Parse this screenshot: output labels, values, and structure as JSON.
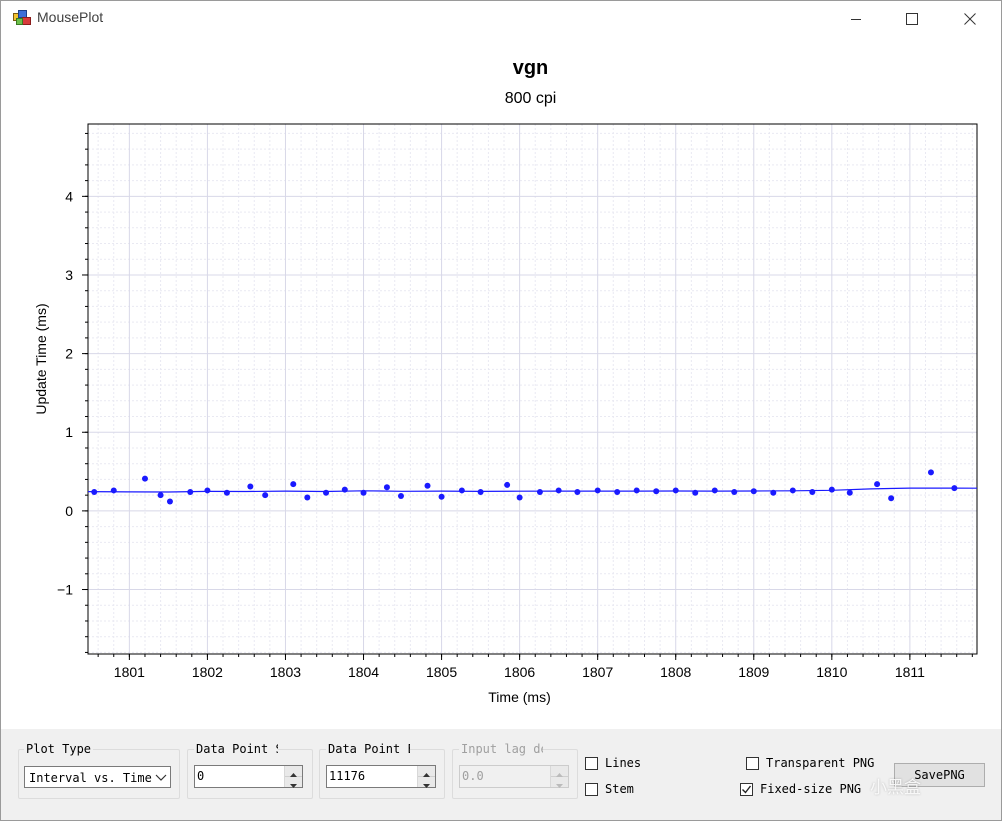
{
  "window": {
    "title": "MousePlot",
    "minimize_icon": "minimize-icon",
    "maximize_icon": "maximize-icon",
    "close_icon": "close-icon"
  },
  "chart_data": {
    "type": "scatter",
    "title": "vgn",
    "subtitle": "800 cpi",
    "xlabel": "Time (ms)",
    "ylabel": "Update Time (ms)",
    "xlim": [
      1800.47,
      1811.86
    ],
    "ylim": [
      -1.82,
      4.92
    ],
    "xticks": [
      1801,
      1802,
      1803,
      1804,
      1805,
      1806,
      1807,
      1808,
      1809,
      1810,
      1811
    ],
    "yticks": [
      -1,
      0,
      1,
      2,
      3,
      4
    ],
    "grid": true,
    "colors": {
      "points": "#1a1aff",
      "line": "#1a1aff",
      "grid": "#d8d8e8"
    },
    "series": [
      {
        "values": [
          {
            "x": 1800.55,
            "y": 0.24
          },
          {
            "x": 1800.8,
            "y": 0.26
          },
          {
            "x": 1801.2,
            "y": 0.41
          },
          {
            "x": 1801.4,
            "y": 0.2
          },
          {
            "x": 1801.52,
            "y": 0.12
          },
          {
            "x": 1801.78,
            "y": 0.24
          },
          {
            "x": 1802.0,
            "y": 0.26
          },
          {
            "x": 1802.25,
            "y": 0.23
          },
          {
            "x": 1802.55,
            "y": 0.31
          },
          {
            "x": 1802.74,
            "y": 0.2
          },
          {
            "x": 1803.1,
            "y": 0.34
          },
          {
            "x": 1803.28,
            "y": 0.17
          },
          {
            "x": 1803.52,
            "y": 0.23
          },
          {
            "x": 1803.76,
            "y": 0.27
          },
          {
            "x": 1804.0,
            "y": 0.23
          },
          {
            "x": 1804.3,
            "y": 0.3
          },
          {
            "x": 1804.48,
            "y": 0.19
          },
          {
            "x": 1804.82,
            "y": 0.32
          },
          {
            "x": 1805.0,
            "y": 0.18
          },
          {
            "x": 1805.26,
            "y": 0.26
          },
          {
            "x": 1805.5,
            "y": 0.24
          },
          {
            "x": 1805.84,
            "y": 0.33
          },
          {
            "x": 1806.0,
            "y": 0.17
          },
          {
            "x": 1806.26,
            "y": 0.24
          },
          {
            "x": 1806.5,
            "y": 0.26
          },
          {
            "x": 1806.74,
            "y": 0.24
          },
          {
            "x": 1807.0,
            "y": 0.26
          },
          {
            "x": 1807.25,
            "y": 0.24
          },
          {
            "x": 1807.5,
            "y": 0.26
          },
          {
            "x": 1807.75,
            "y": 0.25
          },
          {
            "x": 1808.0,
            "y": 0.26
          },
          {
            "x": 1808.25,
            "y": 0.23
          },
          {
            "x": 1808.5,
            "y": 0.26
          },
          {
            "x": 1808.75,
            "y": 0.24
          },
          {
            "x": 1809.0,
            "y": 0.25
          },
          {
            "x": 1809.25,
            "y": 0.23
          },
          {
            "x": 1809.5,
            "y": 0.26
          },
          {
            "x": 1809.75,
            "y": 0.24
          },
          {
            "x": 1810.0,
            "y": 0.27
          },
          {
            "x": 1810.23,
            "y": 0.23
          },
          {
            "x": 1810.58,
            "y": 0.34
          },
          {
            "x": 1810.76,
            "y": 0.16
          },
          {
            "x": 1811.27,
            "y": 0.49
          },
          {
            "x": 1811.57,
            "y": 0.29
          }
        ]
      }
    ],
    "trend_line": [
      {
        "x": 1800.47,
        "y": 0.245
      },
      {
        "x": 1801.0,
        "y": 0.242
      },
      {
        "x": 1801.5,
        "y": 0.24
      },
      {
        "x": 1802.0,
        "y": 0.248
      },
      {
        "x": 1802.5,
        "y": 0.246
      },
      {
        "x": 1803.0,
        "y": 0.252
      },
      {
        "x": 1803.5,
        "y": 0.247
      },
      {
        "x": 1804.0,
        "y": 0.255
      },
      {
        "x": 1804.5,
        "y": 0.249
      },
      {
        "x": 1805.0,
        "y": 0.252
      },
      {
        "x": 1805.5,
        "y": 0.248
      },
      {
        "x": 1806.0,
        "y": 0.25
      },
      {
        "x": 1806.5,
        "y": 0.252
      },
      {
        "x": 1807.0,
        "y": 0.251
      },
      {
        "x": 1807.5,
        "y": 0.252
      },
      {
        "x": 1808.0,
        "y": 0.253
      },
      {
        "x": 1808.5,
        "y": 0.252
      },
      {
        "x": 1809.0,
        "y": 0.253
      },
      {
        "x": 1809.5,
        "y": 0.255
      },
      {
        "x": 1810.0,
        "y": 0.262
      },
      {
        "x": 1810.5,
        "y": 0.28
      },
      {
        "x": 1811.0,
        "y": 0.29
      },
      {
        "x": 1811.5,
        "y": 0.29
      },
      {
        "x": 1811.86,
        "y": 0.288
      }
    ]
  },
  "controls": {
    "plot_type": {
      "label": "Plot Type",
      "value": "Interval vs. Time"
    },
    "data_start": {
      "label": "Data Point Start",
      "value": "0"
    },
    "data_end": {
      "label": "Data Point End",
      "value": "11176"
    },
    "input_lag": {
      "label": "Input lag delay",
      "value": "0.0"
    },
    "lines": {
      "label": "Lines",
      "checked": false
    },
    "stem": {
      "label": "Stem",
      "checked": false
    },
    "transparent_png": {
      "label": "Transparent PNG",
      "checked": false
    },
    "fixed_size_png": {
      "label": "Fixed-size PNG",
      "checked": true
    },
    "save_png": {
      "label": "SavePNG"
    }
  },
  "watermark": "小黑盒"
}
